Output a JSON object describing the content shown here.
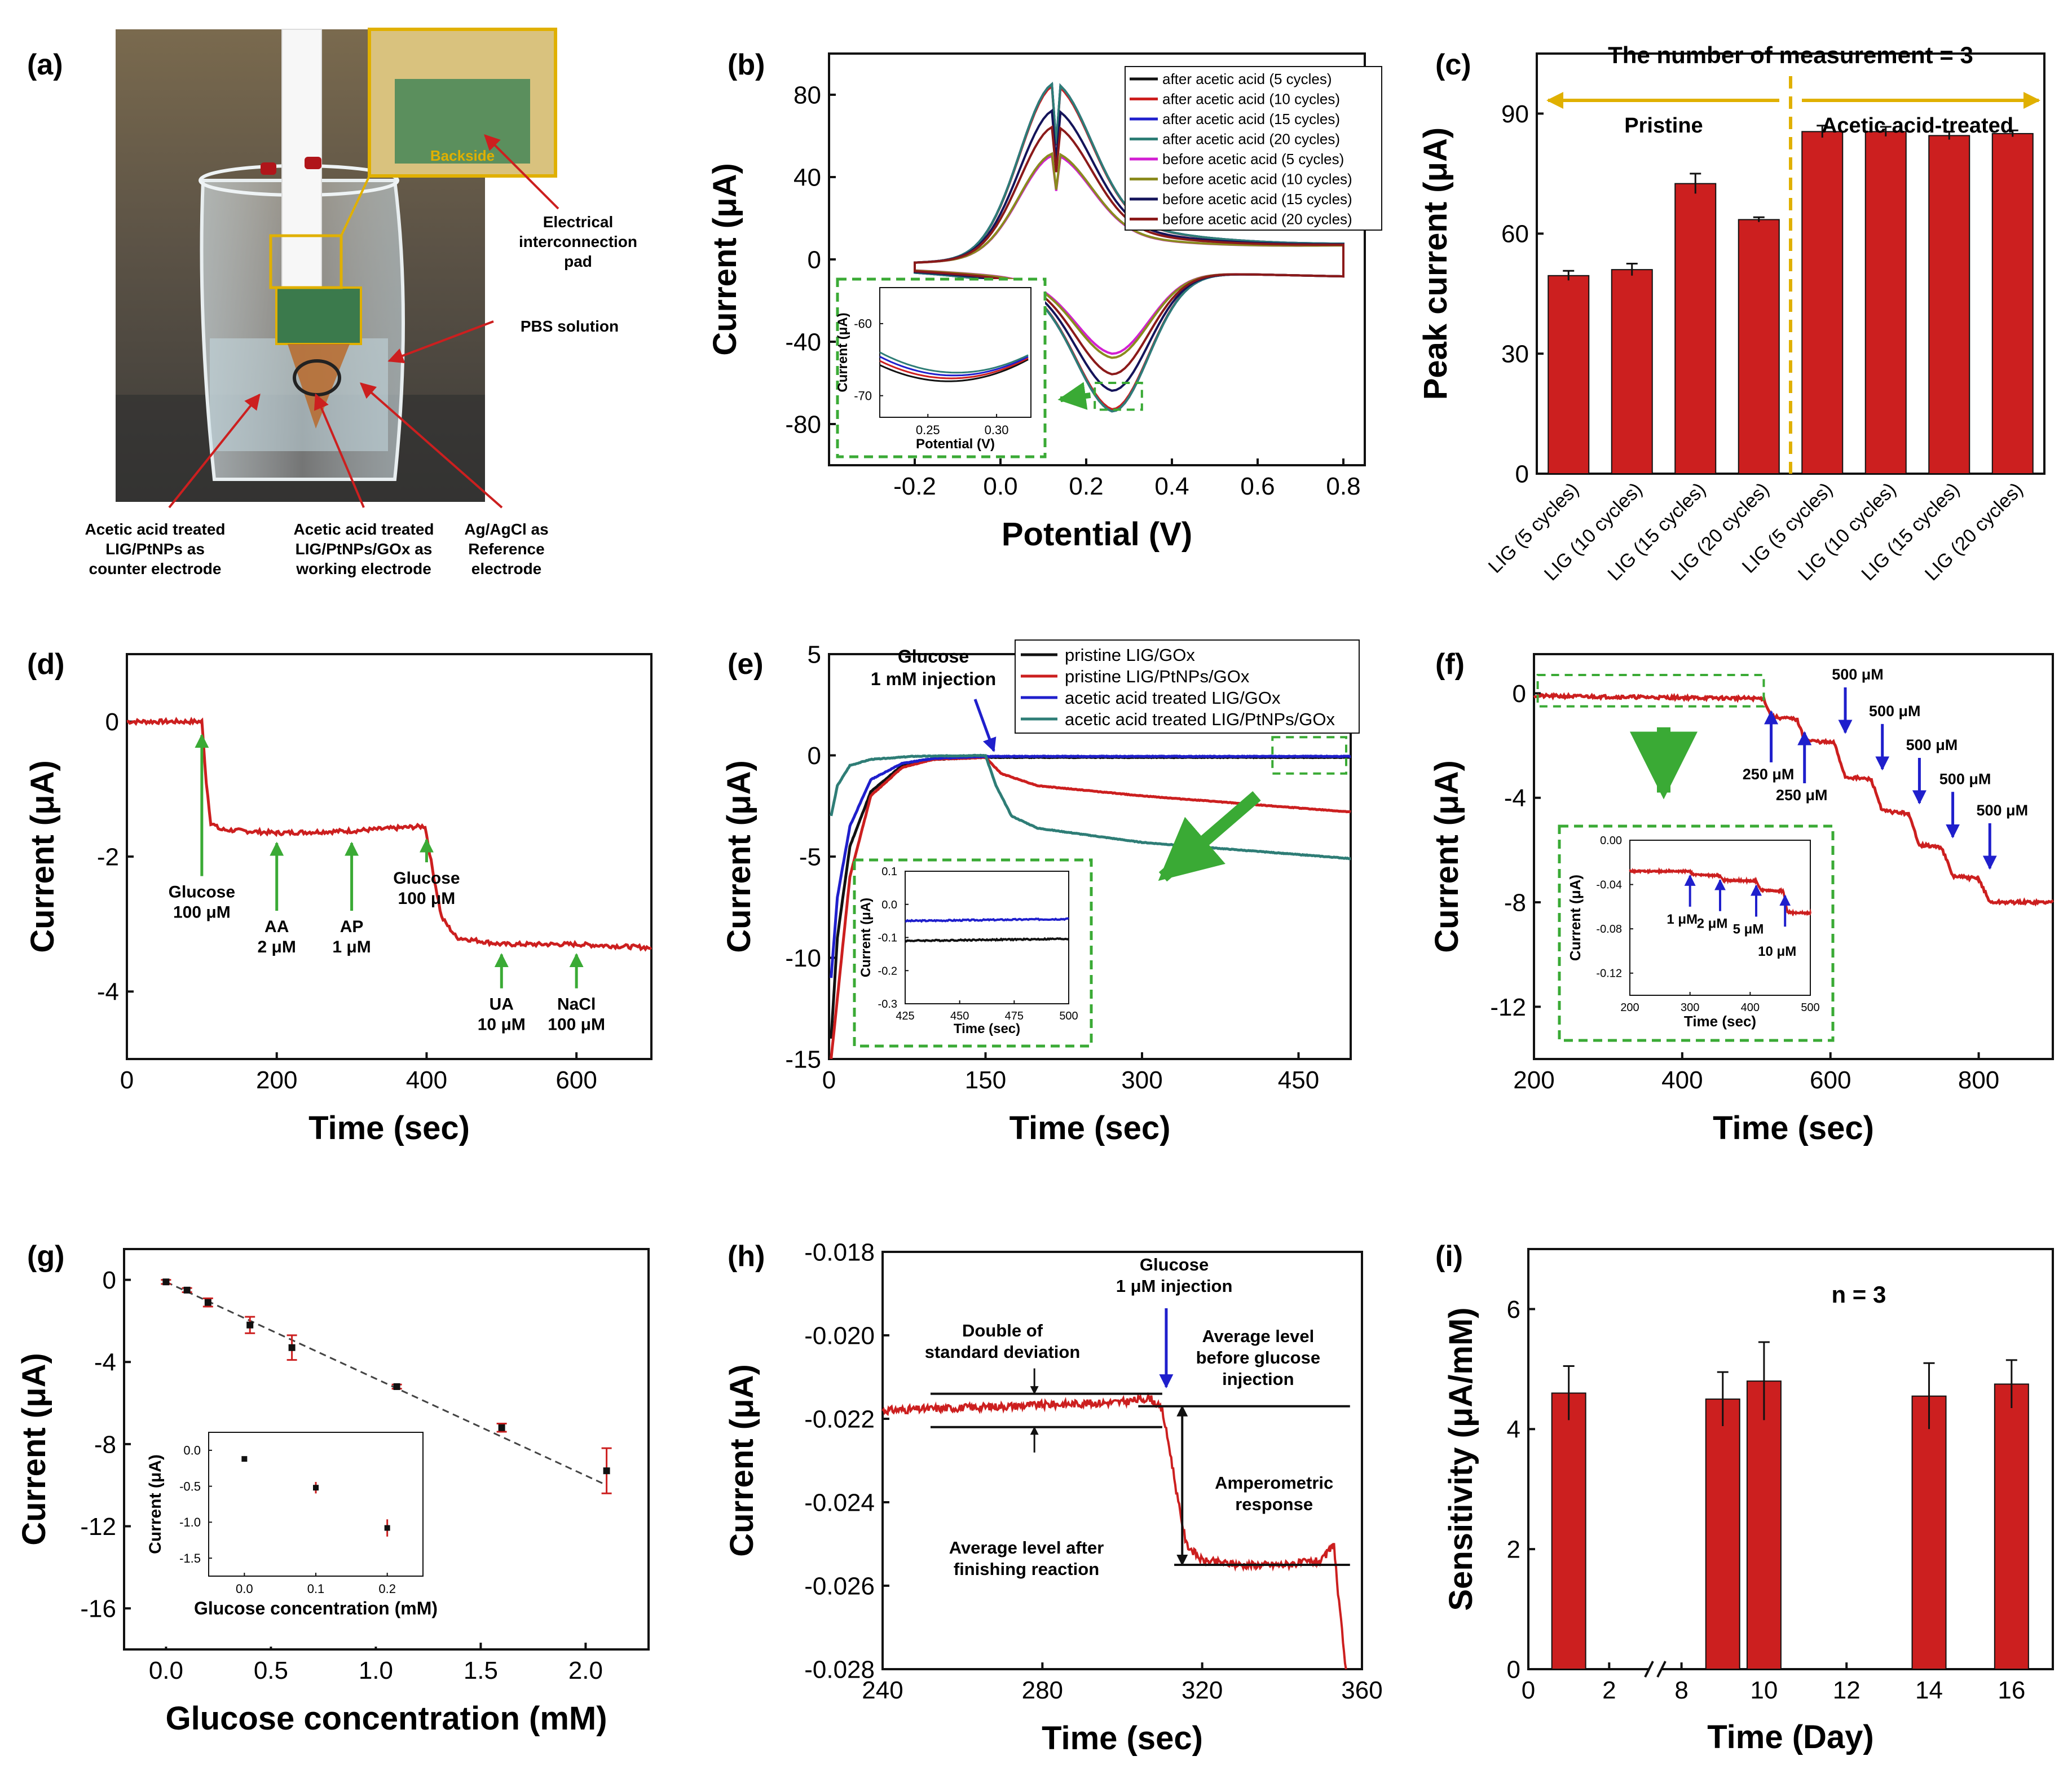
{
  "colors": {
    "red": "#cc1f1f",
    "darkred": "#8b1a1a",
    "blue": "#1f1fcc",
    "navy": "#14145a",
    "teal": "#2e7d76",
    "magenta": "#d21fd2",
    "olive": "#8a8a1e",
    "green": "#3aaa35",
    "gold": "#e0b000",
    "black": "#111111"
  },
  "panel_a": {
    "label": "(a)",
    "callouts": {
      "backside": "Backside",
      "pad": [
        "Electrical",
        "interconnection",
        "pad"
      ],
      "pbs": "PBS solution",
      "counter": [
        "Acetic acid treated",
        "LIG/PtNPs as",
        "counter electrode"
      ],
      "working": [
        "Acetic acid treated",
        "LIG/PtNPs/GOx as",
        "working electrode"
      ],
      "reference": [
        "Ag/AgCl as",
        "Reference",
        "electrode"
      ]
    }
  },
  "chart_data": [
    {
      "id": "b",
      "label": "(b)",
      "type": "line",
      "xlabel": "Potential (V)",
      "ylabel": "Current (μA)",
      "xlim": [
        -0.4,
        0.85
      ],
      "ylim": [
        -100,
        100
      ],
      "xticks": [
        -0.2,
        0.0,
        0.2,
        0.4,
        0.6,
        0.8
      ],
      "xtick_labels": [
        "-0.2",
        "0.0",
        "0.2",
        "0.4",
        "0.6",
        "0.8"
      ],
      "yticks": [
        -80,
        -40,
        0,
        40,
        80
      ],
      "ytick_labels": [
        "-80",
        "-40",
        "0",
        "40",
        "80"
      ],
      "legend": [
        {
          "name": "after acetic acid (5 cycles)",
          "color": "#111111",
          "ipa": 85,
          "ipc": -68
        },
        {
          "name": "after acetic acid (10 cycles)",
          "color": "#cc1f1f",
          "ipa": 84,
          "ipc": -67
        },
        {
          "name": "after acetic acid (15 cycles)",
          "color": "#1f1fcc",
          "ipa": 85,
          "ipc": -68
        },
        {
          "name": "after acetic acid (20 cycles)",
          "color": "#2e7d76",
          "ipa": 85,
          "ipc": -68
        },
        {
          "name": "before acetic acid (5 cycles)",
          "color": "#d21fd2",
          "ipa": 50,
          "ipc": -40
        },
        {
          "name": "before acetic acid (10 cycles)",
          "color": "#8a8a1e",
          "ipa": 51,
          "ipc": -42
        },
        {
          "name": "before acetic acid (15 cycles)",
          "color": "#14145a",
          "ipa": 72,
          "ipc": -58
        },
        {
          "name": "before acetic acid (20 cycles)",
          "color": "#8b1a1a",
          "ipa": 64,
          "ipc": -50
        }
      ],
      "inset": {
        "xlabel": "Potential (V)",
        "ylabel": "Current (μA)",
        "xlim": [
          0.215,
          0.325
        ],
        "ylim": [
          -73,
          -55
        ],
        "xticks": [
          0.25,
          0.3
        ],
        "xtick_labels": [
          "0.25",
          "0.30"
        ],
        "yticks": [
          -60,
          -70
        ],
        "ytick_labels": [
          "-60",
          "-70"
        ]
      }
    },
    {
      "id": "c",
      "label": "(c)",
      "type": "bar",
      "title": "The number of measurement = 3",
      "ylabel": "Peak current (μA)",
      "ylim": [
        0,
        105
      ],
      "yticks": [
        0,
        30,
        60,
        90
      ],
      "ytick_labels": [
        "0",
        "30",
        "60",
        "90"
      ],
      "categories": [
        "LIG (5 cycles)",
        "LIG (10 cycles)",
        "LIG (15 cycles)",
        "LIG (20 cycles)",
        "LIG (5 cycles)",
        "LIG (10 cycles)",
        "LIG (15 cycles)",
        "LIG (20 cycles)"
      ],
      "values": [
        49.5,
        51,
        72.5,
        63.5,
        85.5,
        85.5,
        84.5,
        85
      ],
      "errors": [
        1.2,
        1.5,
        2.5,
        0.6,
        1.5,
        1.2,
        1.0,
        0.8
      ],
      "groups": [
        "Pristine",
        "Acetic acid-treated"
      ]
    },
    {
      "id": "d",
      "label": "(d)",
      "type": "line",
      "xlabel": "Time (sec)",
      "ylabel": "Current (μA)",
      "xlim": [
        0,
        700
      ],
      "ylim": [
        -5,
        1
      ],
      "xticks": [
        0,
        200,
        400,
        600
      ],
      "xtick_labels": [
        "0",
        "200",
        "400",
        "600"
      ],
      "yticks": [
        0,
        -2,
        -4
      ],
      "ytick_labels": [
        "0",
        "-2",
        "-4"
      ],
      "series": [
        {
          "name": "response",
          "color": "#cc1f1f",
          "x": [
            0,
            100,
            106,
            112,
            125,
            200,
            300,
            398,
            408,
            420,
            440,
            500,
            600,
            700
          ],
          "y": [
            0,
            0,
            -0.9,
            -1.5,
            -1.6,
            -1.65,
            -1.62,
            -1.55,
            -2.2,
            -2.9,
            -3.2,
            -3.3,
            -3.3,
            -3.35
          ]
        }
      ],
      "annotations": [
        {
          "x": 100,
          "lines": [
            "Glucose",
            "100 μM"
          ]
        },
        {
          "x": 200,
          "lines": [
            "AA",
            "2 μM"
          ]
        },
        {
          "x": 300,
          "lines": [
            "AP",
            "1 μM"
          ]
        },
        {
          "x": 400,
          "lines": [
            "Glucose",
            "100 μM"
          ]
        },
        {
          "x": 500,
          "lines": [
            "UA",
            "10 μM"
          ]
        },
        {
          "x": 600,
          "lines": [
            "NaCl",
            "100 μM"
          ]
        }
      ]
    },
    {
      "id": "e",
      "label": "(e)",
      "type": "line",
      "xlabel": "Time (sec)",
      "ylabel": "Current (μA)",
      "xlim": [
        0,
        500
      ],
      "ylim": [
        -15,
        5
      ],
      "xticks": [
        0,
        150,
        300,
        450
      ],
      "xtick_labels": [
        "0",
        "150",
        "300",
        "450"
      ],
      "yticks": [
        5,
        0,
        -5,
        -10,
        -15
      ],
      "ytick_labels": [
        "5",
        "0",
        "-5",
        "-10",
        "-15"
      ],
      "injection_label": [
        "Glucose",
        "1 mM injection"
      ],
      "series": [
        {
          "name": "pristine LIG/GOx",
          "color": "#111111",
          "x": [
            2,
            8,
            20,
            40,
            70,
            100,
            150,
            300,
            500
          ],
          "y": [
            -14,
            -9,
            -4.5,
            -1.8,
            -0.5,
            -0.2,
            -0.1,
            -0.1,
            -0.1
          ]
        },
        {
          "name": "pristine LIG/PtNPs/GOx",
          "color": "#cc1f1f",
          "x": [
            2,
            8,
            20,
            40,
            70,
            100,
            150,
            165,
            200,
            300,
            400,
            500
          ],
          "y": [
            -15,
            -12,
            -6,
            -2,
            -0.6,
            -0.2,
            -0.1,
            -0.9,
            -1.5,
            -2.0,
            -2.4,
            -2.8
          ]
        },
        {
          "name": "acetic acid treated LIG/GOx",
          "color": "#1f1fcc",
          "x": [
            2,
            8,
            20,
            40,
            70,
            100,
            150,
            300,
            500
          ],
          "y": [
            -11,
            -7,
            -3.5,
            -1.2,
            -0.4,
            -0.15,
            -0.05,
            -0.05,
            -0.05
          ]
        },
        {
          "name": "acetic acid treated LIG/PtNPs/GOx",
          "color": "#2e7d76",
          "x": [
            2,
            8,
            20,
            40,
            80,
            150,
            160,
            175,
            200,
            300,
            400,
            500
          ],
          "y": [
            -3,
            -1.5,
            -0.5,
            -0.2,
            -0.05,
            0,
            -1.5,
            -3.0,
            -3.6,
            -4.3,
            -4.7,
            -5.1
          ]
        }
      ],
      "inset": {
        "xlabel": "Time (sec)",
        "ylabel": "Current (μA)",
        "xlim": [
          425,
          500
        ],
        "ylim": [
          -0.3,
          0.1
        ],
        "xticks": [
          425,
          450,
          475,
          500
        ],
        "xtick_labels": [
          "425",
          "450",
          "475",
          "500"
        ],
        "yticks": [
          0.1,
          0.0,
          -0.1,
          -0.2,
          -0.3
        ],
        "ytick_labels": [
          "0.1",
          "0.0",
          "-0.1",
          "-0.2",
          "-0.3"
        ],
        "series": [
          {
            "color": "#1f1fcc",
            "y": -0.05
          },
          {
            "color": "#111111",
            "y": -0.11
          }
        ]
      }
    },
    {
      "id": "f",
      "label": "(f)",
      "type": "line",
      "xlabel": "Time (sec)",
      "ylabel": "Current (μA)",
      "xlim": [
        200,
        900
      ],
      "ylim": [
        -14,
        1.5
      ],
      "xticks": [
        200,
        400,
        600,
        800
      ],
      "xtick_labels": [
        "200",
        "400",
        "600",
        "800"
      ],
      "yticks": [
        0,
        -4,
        -8,
        -12
      ],
      "ytick_labels": [
        "0",
        "-4",
        "-8",
        "-12"
      ],
      "series": [
        {
          "name": "steps",
          "color": "#cc1f1f",
          "x": [
            200,
            510,
            520,
            555,
            565,
            605,
            620,
            655,
            670,
            705,
            720,
            750,
            765,
            800,
            815,
            900
          ],
          "y": [
            -0.1,
            -0.2,
            -0.9,
            -1.0,
            -1.8,
            -1.9,
            -3.2,
            -3.3,
            -4.5,
            -4.6,
            -5.8,
            -5.9,
            -7.0,
            -7.1,
            -8.0,
            -8.0
          ]
        }
      ],
      "annotations": [
        {
          "x": 520,
          "text": "250 μM"
        },
        {
          "x": 565,
          "text": "250 μM"
        },
        {
          "x": 620,
          "text": "500 μM"
        },
        {
          "x": 670,
          "text": "500 μM"
        },
        {
          "x": 720,
          "text": "500 μM"
        },
        {
          "x": 765,
          "text": "500 μM"
        },
        {
          "x": 815,
          "text": "500 μM"
        }
      ],
      "inset": {
        "xlabel": "Time (sec)",
        "ylabel": "Current (μA)",
        "xlim": [
          200,
          500
        ],
        "ylim": [
          -0.14,
          0.0
        ],
        "xticks": [
          200,
          300,
          400,
          500
        ],
        "xtick_labels": [
          "200",
          "300",
          "400",
          "500"
        ],
        "yticks": [
          0.0,
          -0.04,
          -0.08,
          -0.12
        ],
        "ytick_labels": [
          "0.00",
          "-0.04",
          "-0.08",
          "-0.12"
        ],
        "x": [
          200,
          300,
          305,
          350,
          355,
          410,
          418,
          455,
          462,
          500
        ],
        "y": [
          -0.028,
          -0.028,
          -0.031,
          -0.032,
          -0.036,
          -0.037,
          -0.045,
          -0.046,
          -0.065,
          -0.066
        ],
        "annotations": [
          {
            "x": 300,
            "text": "1 μM"
          },
          {
            "x": 350,
            "text": "2 μM"
          },
          {
            "x": 410,
            "text": "5 μM"
          },
          {
            "x": 458,
            "text": "10 μM"
          }
        ]
      }
    },
    {
      "id": "g",
      "label": "(g)",
      "type": "scatter",
      "xlabel": "Glucose concentration (mM)",
      "ylabel": "Current (μA)",
      "xlim": [
        -0.2,
        2.3
      ],
      "ylim": [
        -18,
        1.5
      ],
      "xticks": [
        0.0,
        0.5,
        1.0,
        1.5,
        2.0
      ],
      "xtick_labels": [
        "0.0",
        "0.5",
        "1.0",
        "1.5",
        "2.0"
      ],
      "yticks": [
        0,
        -4,
        -8,
        -12,
        -16
      ],
      "ytick_labels": [
        "0",
        "-4",
        "-8",
        "-12",
        "-16"
      ],
      "x": [
        0.0,
        0.1,
        0.2,
        0.4,
        0.6,
        1.1,
        1.6,
        2.1
      ],
      "y": [
        -0.1,
        -0.5,
        -1.1,
        -2.2,
        -3.3,
        -5.2,
        -7.2,
        -9.3
      ],
      "errors": [
        0.1,
        0.1,
        0.2,
        0.4,
        0.6,
        0.1,
        0.2,
        1.1
      ],
      "fit": {
        "x": [
          0.0,
          2.1
        ],
        "y": [
          -0.1,
          -10.0
        ]
      },
      "inset": {
        "xlabel": "Glucose concentration (mM)",
        "ylabel": "Current (μA)",
        "xlim": [
          -0.05,
          0.25
        ],
        "ylim": [
          -1.75,
          0.25
        ],
        "xticks": [
          0.0,
          0.1,
          0.2
        ],
        "xtick_labels": [
          "0.0",
          "0.1",
          "0.2"
        ],
        "yticks": [
          0.0,
          -0.5,
          -1.0,
          -1.5
        ],
        "ytick_labels": [
          "0.0",
          "-0.5",
          "-1.0",
          "-1.5"
        ],
        "x": [
          0.0,
          0.1,
          0.2
        ],
        "y": [
          -0.12,
          -0.52,
          -1.08
        ],
        "errors": [
          0.02,
          0.08,
          0.12
        ]
      }
    },
    {
      "id": "h",
      "label": "(h)",
      "type": "line",
      "xlabel": "Time (sec)",
      "ylabel": "Current (μA)",
      "xlim": [
        240,
        360
      ],
      "ylim": [
        -0.028,
        -0.018
      ],
      "xticks": [
        240,
        280,
        320,
        360
      ],
      "xtick_labels": [
        "240",
        "280",
        "320",
        "360"
      ],
      "yticks": [
        -0.018,
        -0.02,
        -0.022,
        -0.024,
        -0.026,
        -0.028
      ],
      "ytick_labels": [
        "-0.018",
        "-0.020",
        "-0.022",
        "-0.024",
        "-0.026",
        "-0.028"
      ],
      "series": [
        {
          "name": "single injection",
          "color": "#cc1f1f",
          "x": [
            240,
            300,
            307,
            310,
            312,
            314,
            316,
            320,
            330,
            340,
            350,
            353,
            354,
            356
          ],
          "y": [
            -0.0218,
            -0.0216,
            -0.0215,
            -0.0218,
            -0.0228,
            -0.024,
            -0.025,
            -0.0254,
            -0.0255,
            -0.0255,
            -0.0254,
            -0.025,
            -0.0262,
            -0.028
          ]
        }
      ],
      "text": {
        "injection": [
          "Glucose",
          "1 μM injection"
        ],
        "deviation": [
          "Double of",
          "standard deviation"
        ],
        "before": [
          "Average level",
          "before glucose",
          "injection"
        ],
        "response": [
          "Amperometric",
          "response"
        ],
        "after": [
          "Average level after",
          "finishing reaction"
        ]
      },
      "levels": {
        "upper_band": -0.0214,
        "lower_band": -0.0222,
        "before": -0.0217,
        "after": -0.0255
      }
    },
    {
      "id": "i",
      "label": "(i)",
      "type": "bar",
      "xlabel": "Time (Day)",
      "ylabel": "Sensitivity (μA/mM)",
      "note": "n = 3",
      "ylim": [
        0,
        7
      ],
      "yticks": [
        0,
        2,
        4,
        6
      ],
      "ytick_labels": [
        "0",
        "2",
        "4",
        "6"
      ],
      "xtick_labels": [
        "0",
        "2",
        "8",
        "10",
        "12",
        "14",
        "16"
      ],
      "categories": [
        "1",
        "9",
        "10",
        "14",
        "16"
      ],
      "values": [
        4.6,
        4.5,
        4.8,
        4.55,
        4.75
      ],
      "errors": [
        0.45,
        0.45,
        0.65,
        0.55,
        0.4
      ]
    }
  ]
}
